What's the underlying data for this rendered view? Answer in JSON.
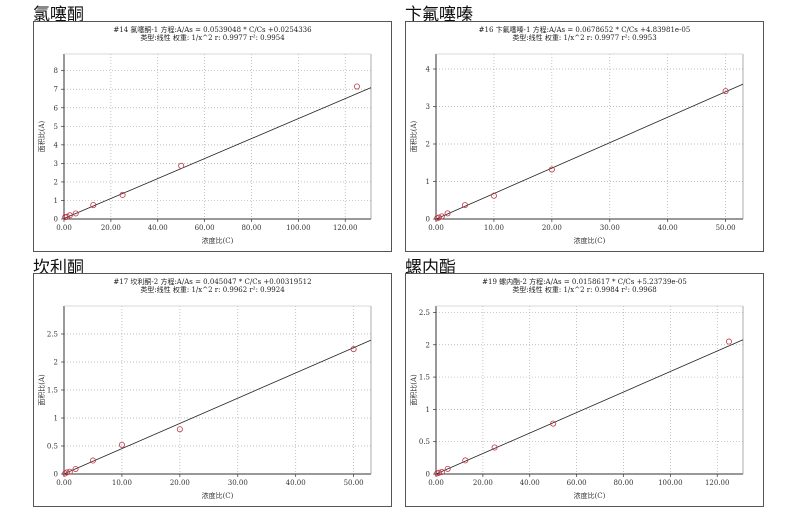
{
  "chart_data": [
    {
      "type": "scatter",
      "title": "氯噻酮",
      "header_line1": "#14  氯噻酮-1  方程:A/As = 0.0539048 * C/Cs +0.0254336",
      "header_line2": "类型:线性  权重: 1/x^2  r: 0.9977  r²: 0.9954",
      "xlabel": "浓度比(C)",
      "ylabel": "面积比(A)",
      "xlim": [
        0,
        131
      ],
      "ylim": [
        0,
        8.9
      ],
      "xticks": [
        0,
        20,
        40,
        60,
        80,
        100,
        120
      ],
      "xtick_labels": [
        "0.00",
        "20.00",
        "40.00",
        "60.00",
        "80.00",
        "100.00",
        "120.00"
      ],
      "yticks": [
        0,
        1,
        2,
        3,
        4,
        5,
        6,
        7,
        8
      ],
      "ytick_labels": [
        "0",
        "1",
        "2",
        "3",
        "4",
        "5",
        "6",
        "7",
        "8"
      ],
      "fit": {
        "slope": 0.0539048,
        "intercept": 0.0254336
      },
      "points": [
        [
          0.5,
          0.1
        ],
        [
          1.25,
          0.12
        ],
        [
          2.5,
          0.2
        ],
        [
          5,
          0.3
        ],
        [
          12.5,
          0.75
        ],
        [
          25,
          1.3
        ],
        [
          50,
          2.87
        ],
        [
          125,
          7.15
        ]
      ],
      "grid": true
    },
    {
      "type": "scatter",
      "title": "卞氟噻嗪",
      "header_line1": "#16  卞氟噻嗪-1  方程:A/As = 0.0678652 * C/Cs +4.83981e-05",
      "header_line2": "类型:线性  权重: 1/x^2  r: 0.9977  r²: 0.9953",
      "xlabel": "浓度比(C)",
      "ylabel": "面积比(A)",
      "xlim": [
        0,
        53
      ],
      "ylim": [
        0,
        4.4
      ],
      "xticks": [
        0,
        10,
        20,
        30,
        40,
        50
      ],
      "xtick_labels": [
        "0.00",
        "10.00",
        "20.00",
        "30.00",
        "40.00",
        "50.00"
      ],
      "yticks": [
        0,
        1,
        2,
        3,
        4
      ],
      "ytick_labels": [
        "0",
        "1",
        "2",
        "3",
        "4"
      ],
      "fit": {
        "slope": 0.0678652,
        "intercept": 4.83981e-05
      },
      "points": [
        [
          0.2,
          0.02
        ],
        [
          0.5,
          0.04
        ],
        [
          1,
          0.07
        ],
        [
          2,
          0.15
        ],
        [
          5,
          0.37
        ],
        [
          10,
          0.62
        ],
        [
          20,
          1.32
        ],
        [
          50,
          3.41
        ]
      ],
      "grid": true
    },
    {
      "type": "scatter",
      "title": "坎利酮",
      "header_line1": "#17  坎利酮-2  方程:A/As = 0.045047 * C/Cs +0.00319512",
      "header_line2": "类型:线性  权重: 1/x^2  r: 0.9962  r²: 0.9924",
      "xlabel": "浓度比(C)",
      "ylabel": "面积比(A)",
      "xlim": [
        0,
        53
      ],
      "ylim": [
        0,
        3.0
      ],
      "xticks": [
        0,
        10,
        20,
        30,
        40,
        50
      ],
      "xtick_labels": [
        "0.00",
        "10.00",
        "20.00",
        "30.00",
        "40.00",
        "50.00"
      ],
      "yticks": [
        0,
        0.5,
        1,
        1.5,
        2,
        2.5
      ],
      "ytick_labels": [
        "0",
        "0.5",
        "1",
        "1.5",
        "2",
        "2.5"
      ],
      "fit": {
        "slope": 0.045047,
        "intercept": 0.00319512
      },
      "points": [
        [
          0.2,
          0.01
        ],
        [
          0.5,
          0.03
        ],
        [
          1,
          0.04
        ],
        [
          2,
          0.09
        ],
        [
          5,
          0.24
        ],
        [
          10,
          0.52
        ],
        [
          20,
          0.8
        ],
        [
          50,
          2.23
        ]
      ],
      "grid": true
    },
    {
      "type": "scatter",
      "title": "螺内酯",
      "header_line1": "#19  螺内酯-2  方程:A/As = 0.0158617 * C/Cs +5.23739e-05",
      "header_line2": "类型:线性  权重: 1/x^2  r: 0.9984  r²: 0.9968",
      "xlabel": "浓度比(C)",
      "ylabel": "面积比(A)",
      "xlim": [
        0,
        131
      ],
      "ylim": [
        0,
        2.6
      ],
      "xticks": [
        0,
        20,
        40,
        60,
        80,
        100,
        120
      ],
      "xtick_labels": [
        "0.00",
        "20.00",
        "40.00",
        "60.00",
        "80.00",
        "100.00",
        "120.00"
      ],
      "yticks": [
        0,
        0.5,
        1,
        1.5,
        2,
        2.5
      ],
      "ytick_labels": [
        "0",
        "0.5",
        "1",
        "1.5",
        "2",
        "2.5"
      ],
      "fit": {
        "slope": 0.0158617,
        "intercept": 5.23739e-05
      },
      "points": [
        [
          0.5,
          0.01
        ],
        [
          1.25,
          0.02
        ],
        [
          2.5,
          0.03
        ],
        [
          5,
          0.08
        ],
        [
          12.5,
          0.21
        ],
        [
          25,
          0.41
        ],
        [
          50,
          0.78
        ],
        [
          125,
          2.05
        ]
      ],
      "grid": true
    }
  ],
  "colors": {
    "point": "#c0394b",
    "line": "#222222",
    "grid": "#aaaaaa"
  }
}
